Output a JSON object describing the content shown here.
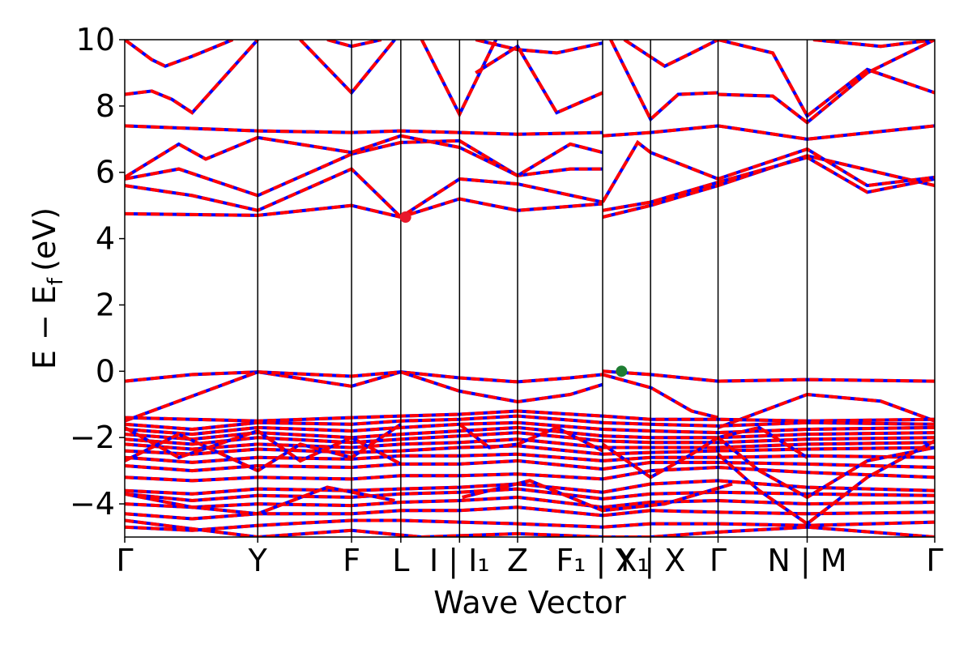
{
  "chart_data": {
    "type": "line",
    "title": "",
    "xlabel": "Wave Vector",
    "ylabel": "E − E",
    "ylabel_sub": "f",
    "ylabel_unit": "(eV)",
    "ylim": [
      -5,
      10
    ],
    "yticks": [
      -4,
      -2,
      0,
      2,
      4,
      6,
      8,
      10
    ],
    "ytick_labels": [
      "−4",
      "−2",
      "0",
      "2",
      "4",
      "6",
      "8",
      "10"
    ],
    "xlim": [
      0,
      6.0
    ],
    "kpath_ticks": [
      {
        "x": 0.0,
        "label": "Γ"
      },
      {
        "x": 0.985,
        "label": "Y"
      },
      {
        "x": 1.68,
        "label": "F"
      },
      {
        "x": 2.045,
        "label": "L"
      },
      {
        "x": 2.48,
        "label": "I | I₁"
      },
      {
        "x": 2.91,
        "label": "Z"
      },
      {
        "x": 3.54,
        "label": "F₁ | X₁"
      },
      {
        "x": 3.895,
        "label": "Y | X"
      },
      {
        "x": 4.395,
        "label": "Γ"
      },
      {
        "x": 5.055,
        "label": "N | M"
      },
      {
        "x": 6.0,
        "label": "Γ"
      }
    ],
    "band_style": {
      "color": "#ff0000",
      "dash_color": "#0000ff"
    },
    "markers": [
      {
        "name": "CBM",
        "x": 2.08,
        "y": 4.65,
        "color": "#e8182b"
      },
      {
        "name": "VBM",
        "x": 3.68,
        "y": 0.0,
        "color": "#1e7d32"
      }
    ],
    "series": [
      {
        "x": [
          0,
          0.5,
          0.985,
          1.68,
          2.045,
          2.48,
          2.91,
          3.3,
          3.54
        ],
        "values": [
          -0.3,
          -0.1,
          -0.02,
          -0.45,
          -0.02,
          -0.2,
          -0.32,
          -0.2,
          -0.1
        ]
      },
      {
        "x": [
          3.54,
          3.895,
          4.395,
          5.055,
          6.0
        ],
        "values": [
          0.0,
          -0.1,
          -0.3,
          -0.25,
          -0.3
        ]
      },
      {
        "x": [
          3.54,
          3.9,
          4.2,
          4.395
        ],
        "values": [
          -0.1,
          -0.5,
          -1.2,
          -1.4
        ]
      },
      {
        "x": [
          0,
          0.6,
          0.985,
          1.68,
          2.045,
          2.48,
          2.91,
          3.3,
          3.54
        ],
        "values": [
          -1.5,
          -0.6,
          -0.02,
          -0.15,
          -0.02,
          -0.6,
          -0.92,
          -0.7,
          -0.4
        ]
      },
      {
        "x": [
          4.395,
          5.055,
          5.6,
          6.0
        ],
        "values": [
          -1.7,
          -0.7,
          -0.9,
          -1.5
        ]
      },
      {
        "x": [
          0,
          0.985,
          1.68,
          2.045,
          2.48,
          2.91,
          3.54
        ],
        "values": [
          4.75,
          4.7,
          5.0,
          4.65,
          5.2,
          4.85,
          5.05
        ]
      },
      {
        "x": [
          3.54,
          3.895,
          4.395,
          5.055,
          6.0
        ],
        "values": [
          4.65,
          5.0,
          5.6,
          6.5,
          5.6
        ]
      },
      {
        "x": [
          0,
          0.5,
          0.985,
          1.68,
          2.045,
          2.48,
          2.91,
          3.54
        ],
        "values": [
          5.6,
          5.3,
          4.85,
          6.1,
          4.65,
          5.8,
          5.65,
          5.1
        ]
      },
      {
        "x": [
          3.54,
          3.895,
          4.395,
          5.055,
          5.5,
          6.0
        ],
        "values": [
          4.85,
          5.1,
          5.7,
          6.45,
          5.4,
          5.8
        ]
      },
      {
        "x": [
          0,
          0.4,
          0.985,
          1.68,
          2.045,
          2.48,
          2.91,
          3.3,
          3.54
        ],
        "values": [
          5.8,
          6.1,
          5.3,
          6.55,
          6.9,
          6.95,
          5.9,
          6.1,
          6.1
        ]
      },
      {
        "x": [
          3.54,
          3.8,
          3.895,
          4.395,
          5.055,
          5.5,
          6.0
        ],
        "values": [
          5.1,
          6.9,
          6.6,
          5.8,
          6.7,
          5.6,
          5.85
        ]
      },
      {
        "x": [
          0,
          0.4,
          0.6,
          0.985,
          1.68,
          2.045,
          2.48,
          2.91,
          3.3,
          3.54
        ],
        "values": [
          5.85,
          6.85,
          6.4,
          7.05,
          6.6,
          7.1,
          6.75,
          5.9,
          6.85,
          6.6
        ]
      },
      {
        "x": [
          0,
          0.985,
          1.68,
          2.045,
          2.48,
          2.91,
          3.54
        ],
        "values": [
          7.4,
          7.25,
          7.2,
          7.25,
          7.2,
          7.15,
          7.2
        ]
      },
      {
        "x": [
          3.54,
          3.895,
          4.395,
          5.055,
          6.0
        ],
        "values": [
          7.1,
          7.2,
          7.4,
          7.0,
          7.4
        ]
      },
      {
        "x": [
          0,
          0.2,
          0.35,
          0.5,
          0.985
        ],
        "values": [
          8.35,
          8.45,
          8.2,
          7.8,
          10.0
        ]
      },
      {
        "x": [
          0,
          0.2,
          0.3,
          0.5,
          0.8
        ],
        "values": [
          10.0,
          9.4,
          9.2,
          9.5,
          10.0
        ]
      },
      {
        "x": [
          1.3,
          1.68,
          2.0
        ],
        "values": [
          10.0,
          8.4,
          10.0
        ]
      },
      {
        "x": [
          1.5,
          1.68,
          1.9
        ],
        "values": [
          10.0,
          9.8,
          10.0
        ]
      },
      {
        "x": [
          2.2,
          2.48,
          2.75
        ],
        "values": [
          10.0,
          7.75,
          10.0
        ]
      },
      {
        "x": [
          2.6,
          2.91,
          3.2,
          3.54
        ],
        "values": [
          10.0,
          9.7,
          9.6,
          9.9
        ]
      },
      {
        "x": [
          2.6,
          2.91,
          3.2,
          3.54
        ],
        "values": [
          9.0,
          9.8,
          7.8,
          8.4
        ]
      },
      {
        "x": [
          3.6,
          3.895,
          4.1,
          4.395
        ],
        "values": [
          10.0,
          7.6,
          8.35,
          8.4
        ]
      },
      {
        "x": [
          3.7,
          4.0,
          4.2,
          4.395
        ],
        "values": [
          10.0,
          9.2,
          9.6,
          10.0
        ]
      },
      {
        "x": [
          4.395,
          4.8,
          5.055,
          5.5,
          6.0
        ],
        "values": [
          8.35,
          8.3,
          7.5,
          9.0,
          10.0
        ]
      },
      {
        "x": [
          4.395,
          4.8,
          5.055,
          5.5,
          6.0
        ],
        "values": [
          10.0,
          9.6,
          7.7,
          9.1,
          8.4
        ]
      },
      {
        "x": [
          5.1,
          5.6,
          6.0
        ],
        "values": [
          10.0,
          9.8,
          10.0
        ]
      },
      {
        "x": [
          0,
          0.5,
          0.985,
          1.68,
          2.045,
          2.48,
          2.91,
          3.54,
          3.895,
          4.395,
          5.055,
          6.0
        ],
        "values": [
          -1.4,
          -1.45,
          -1.5,
          -1.4,
          -1.35,
          -1.3,
          -1.2,
          -1.35,
          -1.45,
          -1.45,
          -1.5,
          -1.45
        ]
      },
      {
        "x": [
          0,
          0.5,
          0.985,
          1.68,
          2.045,
          2.48,
          2.91,
          3.54,
          3.895,
          4.395,
          5.055,
          6.0
        ],
        "values": [
          -1.6,
          -1.75,
          -1.55,
          -1.6,
          -1.5,
          -1.45,
          -1.35,
          -1.55,
          -1.6,
          -1.65,
          -1.55,
          -1.6
        ]
      },
      {
        "x": [
          0,
          0.5,
          0.985,
          1.68,
          2.045,
          2.48,
          2.91,
          3.54,
          3.895,
          4.395,
          5.055,
          6.0
        ],
        "values": [
          -1.75,
          -1.9,
          -1.7,
          -1.8,
          -1.7,
          -1.6,
          -1.55,
          -1.75,
          -1.8,
          -1.85,
          -1.75,
          -1.7
        ]
      },
      {
        "x": [
          0,
          0.5,
          0.985,
          1.68,
          2.045,
          2.48,
          2.91,
          3.54,
          3.895,
          4.395,
          5.055,
          6.0
        ],
        "values": [
          -1.9,
          -2.05,
          -1.85,
          -2.0,
          -1.9,
          -1.8,
          -1.7,
          -1.95,
          -2.0,
          -2.0,
          -1.9,
          -1.85
        ]
      },
      {
        "x": [
          0,
          0.5,
          0.985,
          1.68,
          2.045,
          2.48,
          2.91,
          3.54,
          3.895,
          4.395,
          5.055,
          6.0
        ],
        "values": [
          -2.05,
          -2.2,
          -2.0,
          -2.15,
          -2.05,
          -1.95,
          -1.85,
          -2.1,
          -2.15,
          -2.15,
          -2.05,
          -2.0
        ]
      },
      {
        "x": [
          0,
          0.5,
          0.985,
          1.68,
          2.045,
          2.48,
          2.91,
          3.54,
          3.895,
          4.395,
          5.055,
          6.0
        ],
        "values": [
          -2.2,
          -2.35,
          -2.2,
          -2.3,
          -2.2,
          -2.15,
          -2.05,
          -2.3,
          -2.3,
          -2.3,
          -2.2,
          -2.15
        ]
      },
      {
        "x": [
          0,
          0.5,
          0.985,
          1.68,
          2.045,
          2.48,
          2.91,
          3.54,
          3.895,
          4.395,
          5.055,
          6.0
        ],
        "values": [
          -2.4,
          -2.5,
          -2.35,
          -2.45,
          -2.4,
          -2.3,
          -2.25,
          -2.5,
          -2.45,
          -2.4,
          -2.35,
          -2.3
        ]
      },
      {
        "x": [
          0,
          0.5,
          0.985,
          1.68,
          2.045,
          2.48,
          2.91,
          3.54,
          3.895,
          4.395,
          5.055,
          6.0
        ],
        "values": [
          -2.6,
          -2.75,
          -2.6,
          -2.65,
          -2.55,
          -2.55,
          -2.5,
          -2.7,
          -2.6,
          -2.6,
          -2.55,
          -2.6
        ]
      },
      {
        "x": [
          0,
          0.5,
          0.985,
          1.68,
          2.045,
          2.48,
          2.91,
          3.54,
          3.895,
          4.395,
          5.055,
          6.0
        ],
        "values": [
          -2.85,
          -3.0,
          -2.85,
          -2.9,
          -2.8,
          -2.8,
          -2.7,
          -2.95,
          -2.75,
          -2.75,
          -2.8,
          -2.9
        ]
      },
      {
        "x": [
          0,
          0.5,
          0.985,
          1.68,
          2.045,
          2.48,
          2.91,
          3.54,
          3.895,
          4.395,
          5.055,
          6.0
        ],
        "values": [
          -3.2,
          -3.3,
          -3.2,
          -3.25,
          -3.15,
          -3.15,
          -3.1,
          -3.25,
          -3.0,
          -2.9,
          -3.05,
          -3.2
        ]
      },
      {
        "x": [
          0,
          0.5,
          0.985,
          1.68,
          2.045,
          2.48,
          2.91,
          3.54,
          3.895,
          4.395,
          5.055,
          6.0
        ],
        "values": [
          -3.6,
          -3.7,
          -3.55,
          -3.6,
          -3.55,
          -3.5,
          -3.4,
          -3.65,
          -3.4,
          -3.3,
          -3.5,
          -3.6
        ]
      },
      {
        "x": [
          0,
          0.5,
          0.985,
          1.68,
          2.045,
          2.48,
          2.91,
          3.54,
          3.895,
          4.395,
          5.055,
          6.0
        ],
        "values": [
          -3.7,
          -3.9,
          -3.75,
          -3.8,
          -3.7,
          -3.65,
          -3.55,
          -3.85,
          -3.7,
          -3.65,
          -3.7,
          -3.75
        ]
      },
      {
        "x": [
          0,
          0.5,
          0.985,
          1.68,
          2.045,
          2.48,
          2.91,
          3.54,
          3.895,
          4.395,
          5.055,
          6.0
        ],
        "values": [
          -4.0,
          -4.1,
          -4.0,
          -4.05,
          -3.95,
          -3.9,
          -3.8,
          -4.1,
          -3.95,
          -3.9,
          -4.0,
          -3.95
        ]
      },
      {
        "x": [
          0,
          0.5,
          0.985,
          1.68,
          2.045,
          2.48,
          2.91,
          3.54,
          3.895,
          4.395,
          5.055,
          6.0
        ],
        "values": [
          -4.3,
          -4.45,
          -4.3,
          -4.3,
          -4.2,
          -4.2,
          -4.1,
          -4.35,
          -4.2,
          -4.25,
          -4.3,
          -4.25
        ]
      },
      {
        "x": [
          0,
          0.5,
          0.985,
          1.68,
          2.045,
          2.48,
          2.91,
          3.54,
          3.895,
          4.395,
          5.055,
          6.0
        ],
        "values": [
          -4.7,
          -4.8,
          -4.65,
          -4.5,
          -4.5,
          -4.55,
          -4.6,
          -4.7,
          -4.6,
          -4.6,
          -4.65,
          -4.55
        ]
      },
      {
        "x": [
          0,
          0.985,
          1.68,
          2.2,
          2.91,
          3.54,
          3.895,
          4.395,
          5.055,
          6.0
        ],
        "values": [
          -4.5,
          -5.0,
          -4.8,
          -5.0,
          -4.9,
          -5.0,
          -5.0,
          -4.85,
          -4.7,
          -5.0
        ]
      },
      {
        "x": [
          0,
          0.4,
          0.985,
          1.3,
          1.68,
          2.045
        ],
        "values": [
          -2.7,
          -1.9,
          -3.0,
          -2.2,
          -2.6,
          -1.6
        ]
      },
      {
        "x": [
          0,
          0.4,
          0.985,
          1.3,
          1.68,
          2.045
        ],
        "values": [
          -1.7,
          -2.6,
          -1.8,
          -2.7,
          -2.0,
          -2.8
        ]
      },
      {
        "x": [
          2.48,
          2.7,
          2.91,
          3.2,
          3.54
        ],
        "values": [
          -1.6,
          -2.3,
          -2.2,
          -1.7,
          -2.4
        ]
      },
      {
        "x": [
          3.54,
          3.895,
          4.2,
          4.395,
          4.7,
          5.055
        ],
        "values": [
          -2.2,
          -3.2,
          -2.5,
          -2.0,
          -1.7,
          -2.6
        ]
      },
      {
        "x": [
          4.395,
          4.7,
          5.055,
          5.5,
          6.0
        ],
        "values": [
          -2.0,
          -3.0,
          -3.8,
          -2.7,
          -2.3
        ]
      },
      {
        "x": [
          4.395,
          4.7,
          5.055,
          5.5,
          6.0
        ],
        "values": [
          -2.5,
          -3.6,
          -4.6,
          -3.2,
          -2.1
        ]
      },
      {
        "x": [
          0,
          0.5,
          0.985,
          1.5,
          2.0
        ],
        "values": [
          -3.7,
          -4.1,
          -4.3,
          -3.5,
          -3.9
        ]
      },
      {
        "x": [
          2.5,
          3.0,
          3.54,
          4.0,
          4.5
        ],
        "values": [
          -3.8,
          -3.3,
          -4.2,
          -4.0,
          -3.4
        ]
      }
    ]
  }
}
